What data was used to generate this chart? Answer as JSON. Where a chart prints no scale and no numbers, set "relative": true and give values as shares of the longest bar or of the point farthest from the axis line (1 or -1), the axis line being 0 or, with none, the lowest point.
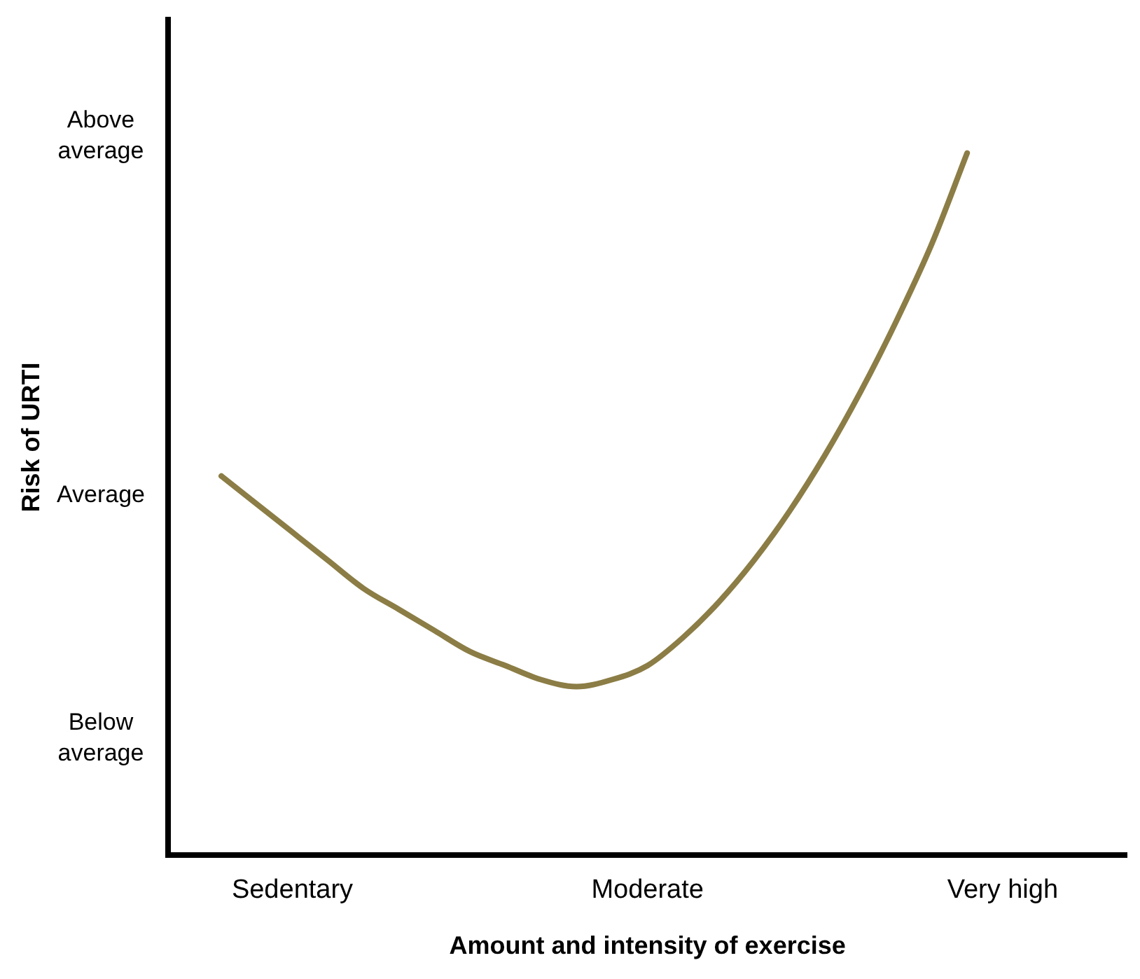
{
  "chart_data": {
    "type": "line",
    "xlabel": "Amount and intensity of exercise",
    "ylabel": "Risk of URTI",
    "relative": true,
    "categories": [
      null,
      null,
      null,
      "Sedentary",
      null,
      null,
      null,
      null,
      null,
      null,
      null,
      null,
      null,
      "Moderate",
      null,
      null,
      null,
      null,
      null,
      null,
      null,
      null,
      null,
      "Very high",
      null,
      null,
      null
    ],
    "series": [
      {
        "color": "#8b7d45",
        "values": [
          null,
          0.54,
          0.5,
          0.46,
          0.42,
          0.38,
          0.35,
          0.32,
          0.29,
          0.27,
          0.25,
          0.24,
          0.25,
          0.27,
          0.31,
          0.36,
          0.42,
          0.49,
          0.57,
          0.66,
          0.76,
          0.87,
          1,
          null,
          null,
          null,
          null
        ]
      }
    ],
    "annotations": [
      "Above average",
      "Average",
      "Below average"
    ],
    "grid": false,
    "legend": false,
    "marker": "none",
    "line_style": "solid"
  }
}
